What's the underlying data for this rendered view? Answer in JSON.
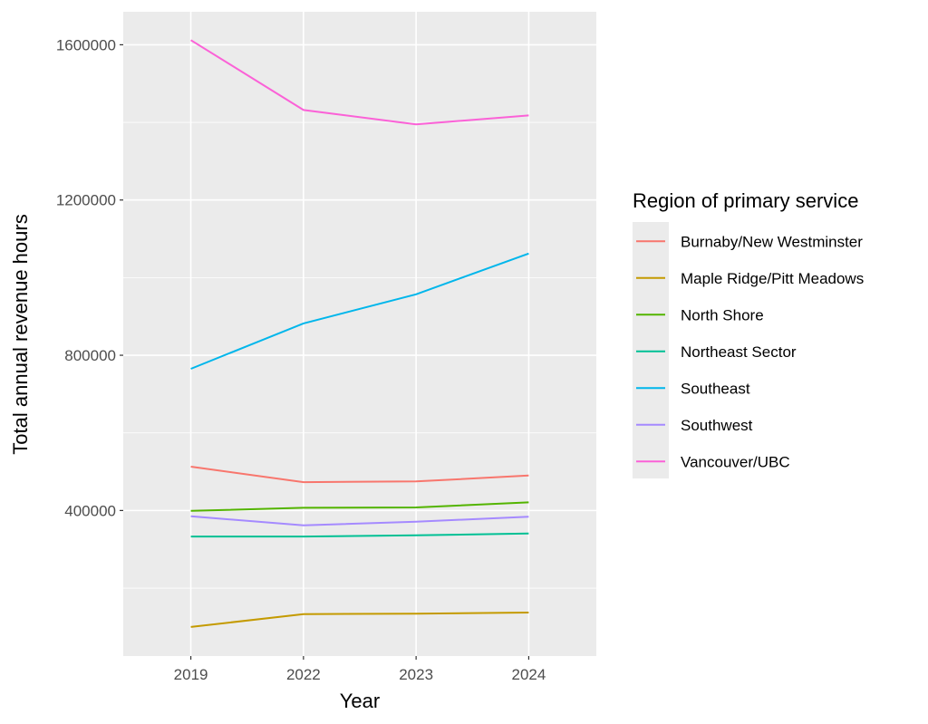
{
  "chart_data": {
    "type": "line",
    "xlabel": "Year",
    "ylabel": "Total annual revenue hours",
    "x": [
      "2019",
      "2022",
      "2023",
      "2024"
    ],
    "ylim": [
      25000,
      1685000
    ],
    "yticks": [
      400000,
      800000,
      1200000,
      1600000
    ],
    "grid": true,
    "legend": {
      "title": "Region of primary service",
      "position": "right"
    },
    "series": [
      {
        "name": "Burnaby/New Westminster",
        "color": "#F8766D",
        "values": [
          513000,
          473000,
          475000,
          490000
        ]
      },
      {
        "name": "Maple Ridge/Pitt Meadows",
        "color": "#C49A00",
        "values": [
          100000,
          133000,
          134000,
          137000
        ]
      },
      {
        "name": "North Shore",
        "color": "#53B400",
        "values": [
          399000,
          407000,
          408000,
          421000
        ]
      },
      {
        "name": "Northeast Sector",
        "color": "#00C094",
        "values": [
          333000,
          333000,
          336000,
          341000
        ]
      },
      {
        "name": "Southeast",
        "color": "#00B6EB",
        "values": [
          765000,
          882000,
          957000,
          1062000
        ]
      },
      {
        "name": "Southwest",
        "color": "#A58AFF",
        "values": [
          385000,
          362000,
          371000,
          384000
        ]
      },
      {
        "name": "Vancouver/UBC",
        "color": "#FB61D7",
        "values": [
          1612000,
          1432000,
          1395000,
          1418000
        ]
      }
    ]
  }
}
